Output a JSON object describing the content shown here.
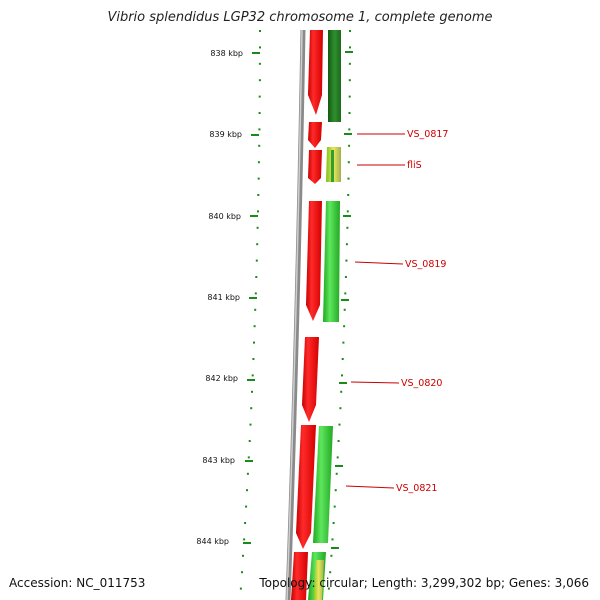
{
  "title": "Vibrio splendidus LGP32 chromosome 1, complete genome",
  "footer": {
    "accession": "Accession: NC_011753",
    "summary": "Topology: circular; Length: 3,299,302 bp; Genes: 3,066"
  },
  "colors": {
    "backbone": "#8a8a8a",
    "tick": "#1a8a1a",
    "forward_feature": "#ee1010",
    "reverse_feature": "#2fc42f",
    "reverse_feature_dark": "#1f7a1f",
    "label": "#cc0000"
  },
  "ruler": {
    "unit": "kbp",
    "major_ticks": [
      "838 kbp",
      "839 kbp",
      "840 kbp",
      "841 kbp",
      "842 kbp",
      "843 kbp",
      "844 kbp"
    ]
  },
  "gene_labels": [
    "VS_0817",
    "fliS",
    "VS_0819",
    "VS_0820",
    "VS_0821"
  ]
}
